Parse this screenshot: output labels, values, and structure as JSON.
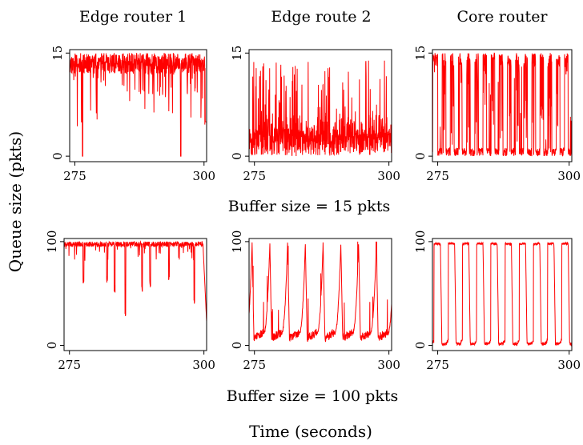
{
  "figure": {
    "column_titles": [
      "Edge router 1",
      "Edge route 2",
      "Core router"
    ],
    "row_captions": [
      "Buffer size = 15 pkts",
      "Buffer size = 100 pkts"
    ],
    "ylabel": "Queue size (pkts)",
    "xlabel": "Time (seconds)",
    "line_color": "#ff0000"
  },
  "chart_data": [
    {
      "type": "line",
      "title": "Edge router 1",
      "xlim": [
        274,
        300.5
      ],
      "ylim": [
        -0.8,
        15.5
      ],
      "xticks": [
        "275",
        "300"
      ],
      "yticks": [
        "0",
        "15"
      ],
      "buffer": 15,
      "pattern": "edge1",
      "seed": 11,
      "series": [
        {
          "values_summary": "mostly 12-15, occasional drops near 0 at ~276.5 and ~295.5"
        }
      ]
    },
    {
      "type": "line",
      "title": "Edge route 2",
      "xlim": [
        274,
        300.5
      ],
      "ylim": [
        -0.8,
        15.5
      ],
      "xticks": [
        "275",
        "300"
      ],
      "yticks": [
        "0",
        "15"
      ],
      "buffer": 15,
      "pattern": "edge2",
      "seed": 23,
      "series": [
        {
          "values_summary": "mostly 0-6 with frequent spikes up to ~14"
        }
      ]
    },
    {
      "type": "line",
      "title": "Core router",
      "xlim": [
        274,
        300.5
      ],
      "ylim": [
        -0.8,
        15.5
      ],
      "xticks": [
        "275",
        "300"
      ],
      "yticks": [
        "0",
        "15"
      ],
      "buffer": 15,
      "pattern": "core15",
      "seed": 37,
      "series": [
        {
          "values_summary": "oscillates between 0 and 15"
        }
      ]
    },
    {
      "type": "line",
      "title": "",
      "xlim": [
        274,
        300.5
      ],
      "ylim": [
        -5,
        103
      ],
      "xticks": [
        "275",
        "300"
      ],
      "yticks": [
        "0",
        "100"
      ],
      "buffer": 100,
      "pattern": "edge1b",
      "seed": 41,
      "series": [
        {
          "values_summary": "mostly 90-100 with dips to ~25-60"
        }
      ]
    },
    {
      "type": "line",
      "title": "",
      "xlim": [
        274,
        300.5
      ],
      "ylim": [
        -5,
        103
      ],
      "xticks": [
        "275",
        "300"
      ],
      "yticks": [
        "0",
        "100"
      ],
      "buffer": 100,
      "pattern": "saw",
      "period": 3.3,
      "start": 274.9,
      "seed": 53,
      "series": [
        {
          "values_summary": "sawtooth: slow rise from ~0 to ~100 then drop, period ~3.3 s"
        }
      ]
    },
    {
      "type": "line",
      "title": "",
      "xlim": [
        274,
        300.5
      ],
      "ylim": [
        -5,
        103
      ],
      "xticks": [
        "275",
        "300"
      ],
      "yticks": [
        "0",
        "100"
      ],
      "buffer": 100,
      "pattern": "square",
      "period": 2.7,
      "start": 274.3,
      "seed": 67,
      "series": [
        {
          "values_summary": "square wave between ~0 and ~100, period ~2.7 s"
        }
      ]
    }
  ]
}
